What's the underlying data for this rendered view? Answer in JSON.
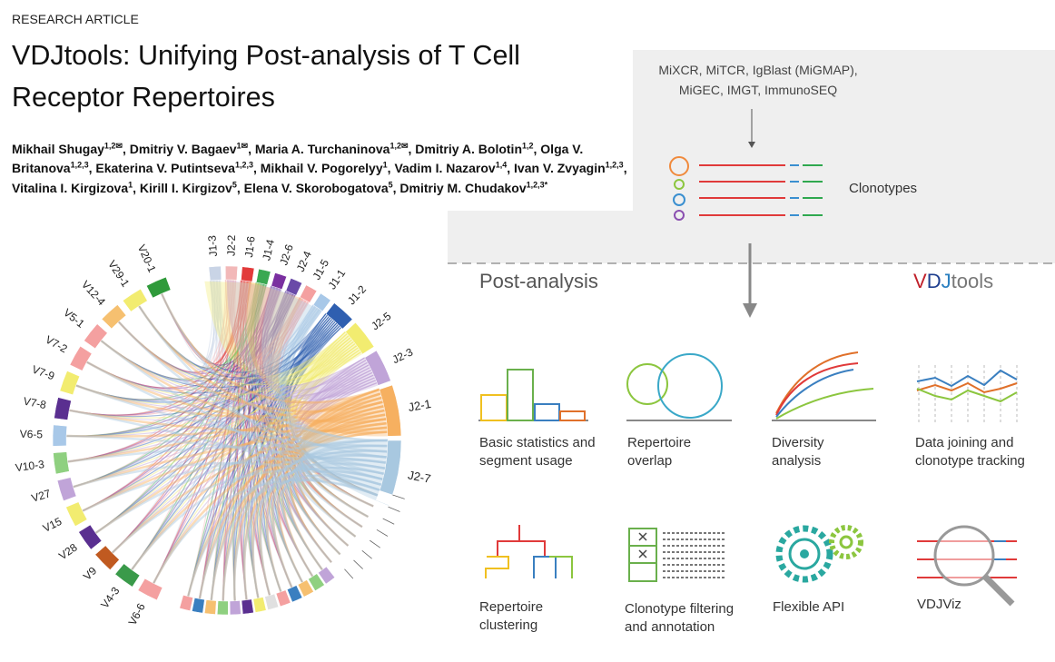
{
  "header": {
    "label": "RESEARCH ARTICLE",
    "title": "VDJtools: Unifying Post-analysis of T Cell Receptor Repertoires",
    "authors": [
      {
        "name": "Mikhail Shugay",
        "sup": "1,2✉"
      },
      {
        "name": "Dmitriy V. Bagaev",
        "sup": "1✉"
      },
      {
        "name": "Maria A. Turchaninova",
        "sup": "1,2✉"
      },
      {
        "name": "Dmitriy A. Bolotin",
        "sup": "1,2"
      },
      {
        "name": "Olga V. Britanova",
        "sup": "1,2,3"
      },
      {
        "name": "Ekaterina V. Putintseva",
        "sup": "1,2,3"
      },
      {
        "name": "Mikhail V. Pogorelyy",
        "sup": "1"
      },
      {
        "name": "Vadim I. Nazarov",
        "sup": "1,4"
      },
      {
        "name": "Ivan V. Zvyagin",
        "sup": "1,2,3"
      },
      {
        "name": "Vitalina I. Kirgizova",
        "sup": "1"
      },
      {
        "name": "Kirill I. Kirgizov",
        "sup": "5"
      },
      {
        "name": "Elena V. Skorobogatova",
        "sup": "5"
      },
      {
        "name": "Dmitriy M. Chudakov",
        "sup": "1,2,3*"
      }
    ]
  },
  "chord": {
    "j_segments": [
      {
        "label": "J1-3",
        "color": "#c9d4e6"
      },
      {
        "label": "J2-2",
        "color": "#f2b8b8"
      },
      {
        "label": "J1-6",
        "color": "#e23a3a"
      },
      {
        "label": "J1-4",
        "color": "#3aa852"
      },
      {
        "label": "J2-6",
        "color": "#7a2fa0"
      },
      {
        "label": "J2-4",
        "color": "#6a4aa8"
      },
      {
        "label": "J1-5",
        "color": "#f4a0a0"
      },
      {
        "label": "J1-1",
        "color": "#a8c8e8"
      },
      {
        "label": "J1-2",
        "color": "#2f5fb0"
      },
      {
        "label": "J2-5",
        "color": "#f2ec70"
      },
      {
        "label": "J2-3",
        "color": "#c0a4d8"
      },
      {
        "label": "J2-1",
        "color": "#f6b060"
      },
      {
        "label": "J2-7",
        "color": "#a8c8e0"
      }
    ],
    "v_segments": [
      {
        "label": "V20-1",
        "color": "#2f9a3a"
      },
      {
        "label": "V29-1",
        "color": "#f2ec70"
      },
      {
        "label": "V12-4",
        "color": "#f6c070"
      },
      {
        "label": "V5-1",
        "color": "#f4a0a0"
      },
      {
        "label": "V7-2",
        "color": "#f4a0a0"
      },
      {
        "label": "V7-9",
        "color": "#f2ec70"
      },
      {
        "label": "V7-8",
        "color": "#5a2f90"
      },
      {
        "label": "V6-5",
        "color": "#a8c8e8"
      },
      {
        "label": "V10-3",
        "color": "#8fd080"
      },
      {
        "label": "V27",
        "color": "#c0a4d8"
      },
      {
        "label": "V15",
        "color": "#f2ec70"
      },
      {
        "label": "V28",
        "color": "#5a2f90"
      },
      {
        "label": "V9",
        "color": "#c05a20"
      },
      {
        "label": "V4-3",
        "color": "#3a9a4a"
      },
      {
        "label": "V6-6",
        "color": "#f4a0a0"
      }
    ]
  },
  "pipeline": {
    "sources": "MiXCR, MiTCR, IgBlast (MiGMAP), MiGEC, IMGT, ImmunoSEQ",
    "clonotypes": "Clonotypes",
    "section": "Post-analysis",
    "brand": "VDJtools",
    "tools": [
      "Basic statistics and segment usage",
      "Repertoire overlap",
      "Diversity analysis",
      "Data joining and clonotype tracking",
      "Repertoire clustering",
      "Clonotype filtering and annotation",
      "Flexible API",
      "VDJViz"
    ]
  }
}
